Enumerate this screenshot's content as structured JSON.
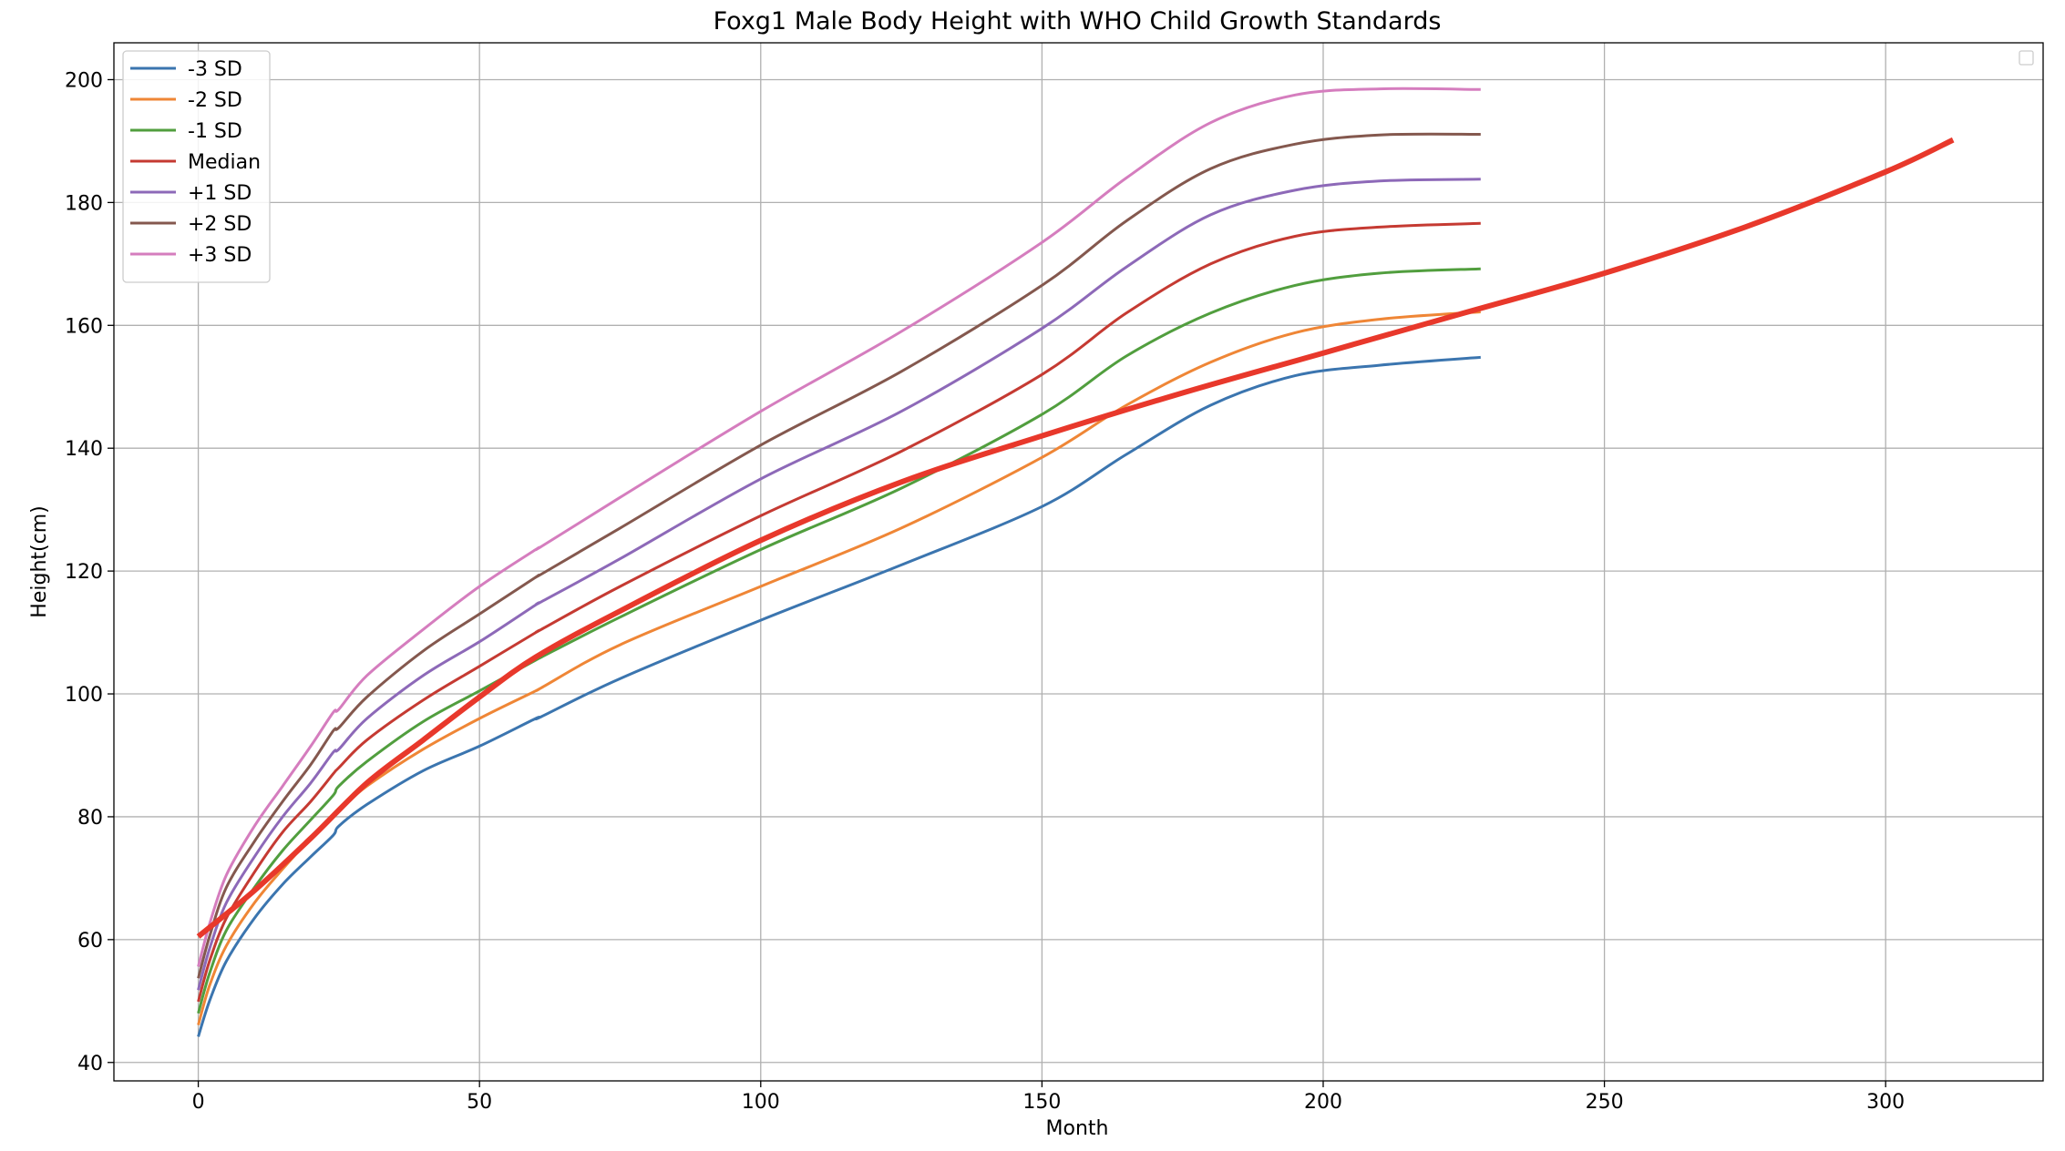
{
  "chart_data": {
    "type": "line",
    "title": "Foxg1 Male Body Height with WHO Child Growth Standards",
    "xlabel": "Month",
    "ylabel": "Height(cm)",
    "xlim": [
      -15,
      328
    ],
    "ylim": [
      37,
      206
    ],
    "xticks": [
      0,
      50,
      100,
      150,
      200,
      250,
      300
    ],
    "yticks": [
      40,
      60,
      80,
      100,
      120,
      140,
      160,
      180,
      200
    ],
    "grid": true,
    "legend_position": "upper-left",
    "x": [
      0,
      2,
      5,
      10,
      15,
      20,
      24,
      25,
      30,
      40,
      50,
      60,
      61,
      75,
      100,
      125,
      150,
      165,
      180,
      195,
      210,
      228
    ],
    "series": [
      {
        "name": "-3 SD",
        "color": "#3b75af",
        "values": [
          44.2,
          50.0,
          56.5,
          63.5,
          69.0,
          73.5,
          77.0,
          78.5,
          82.0,
          87.5,
          91.5,
          96.0,
          96.3,
          102.5,
          112.0,
          121.0,
          130.5,
          139.0,
          147.0,
          151.8,
          153.5,
          154.8
        ]
      },
      {
        "name": "-2 SD",
        "color": "#ef8636",
        "values": [
          46.1,
          52.5,
          59.0,
          66.0,
          71.5,
          76.5,
          80.0,
          81.0,
          85.0,
          91.0,
          96.0,
          100.5,
          101.0,
          108.0,
          117.5,
          127.0,
          138.5,
          147.0,
          154.0,
          158.8,
          161.0,
          162.2
        ]
      },
      {
        "name": "-1 SD",
        "color": "#519e3e",
        "values": [
          48.0,
          54.5,
          61.5,
          68.5,
          74.5,
          79.5,
          83.5,
          85.0,
          89.0,
          95.5,
          100.5,
          105.5,
          106.0,
          112.5,
          123.5,
          133.5,
          145.5,
          155.0,
          162.0,
          166.5,
          168.5,
          169.2
        ]
      },
      {
        "name": "Median",
        "color": "#c53a32",
        "values": [
          49.9,
          56.5,
          63.5,
          71.0,
          77.5,
          82.5,
          87.0,
          88.0,
          92.5,
          99.0,
          104.5,
          110.0,
          110.5,
          117.5,
          129.0,
          139.5,
          152.0,
          162.0,
          170.0,
          174.5,
          176.0,
          176.6
        ]
      },
      {
        "name": "+1 SD",
        "color": "#8d69b8",
        "values": [
          51.8,
          58.5,
          66.0,
          73.5,
          80.0,
          85.5,
          90.5,
          91.0,
          96.0,
          103.0,
          108.5,
          114.5,
          115.0,
          122.0,
          135.0,
          146.0,
          159.5,
          169.5,
          178.0,
          182.0,
          183.5,
          183.8
        ]
      },
      {
        "name": "+2 SD",
        "color": "#84584e",
        "values": [
          53.7,
          60.5,
          68.5,
          76.0,
          82.5,
          88.5,
          94.0,
          94.5,
          99.5,
          107.0,
          113.0,
          119.0,
          119.5,
          127.0,
          140.5,
          152.5,
          166.5,
          177.0,
          185.5,
          189.5,
          191.0,
          191.1
        ]
      },
      {
        "name": "+3 SD",
        "color": "#d57dbe",
        "values": [
          55.6,
          62.5,
          70.5,
          78.5,
          85.0,
          91.5,
          97.0,
          97.5,
          103.0,
          110.5,
          117.5,
          123.5,
          124.0,
          132.0,
          146.0,
          159.0,
          173.5,
          184.0,
          193.0,
          197.5,
          198.5,
          198.4
        ]
      }
    ],
    "subject": {
      "color": "#e8382b",
      "x": [
        0,
        10,
        20,
        30,
        40,
        50,
        60,
        75,
        100,
        125,
        150,
        175,
        200,
        225,
        250,
        275,
        300,
        312
      ],
      "values": [
        60.5,
        68.0,
        76.5,
        85.5,
        92.5,
        99.5,
        106.0,
        113.5,
        125.0,
        134.5,
        142.0,
        149.0,
        155.5,
        162.0,
        168.5,
        176.0,
        185.0,
        190.2
      ]
    }
  }
}
